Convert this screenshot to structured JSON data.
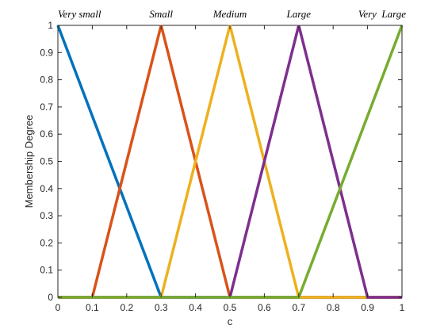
{
  "chart_data": {
    "type": "line",
    "title": "",
    "xlabel": "c",
    "ylabel": "Membership Degree",
    "xlim": [
      0,
      1
    ],
    "ylim": [
      0,
      1
    ],
    "x_ticks": [
      "0",
      "0.1",
      "0.2",
      "0.3",
      "0.4",
      "0.5",
      "0.6",
      "0.7",
      "0.8",
      "0.9",
      "1"
    ],
    "y_ticks": [
      "0",
      "0.1",
      "0.2",
      "0.3",
      "0.4",
      "0.5",
      "0.6",
      "0.7",
      "0.8",
      "0.9",
      "1"
    ],
    "grid": false,
    "top_labels": [
      {
        "text": "Very small",
        "x": 0.0
      },
      {
        "text": "Small",
        "x": 0.3
      },
      {
        "text": "Medium",
        "x": 0.5
      },
      {
        "text": "Large",
        "x": 0.7
      },
      {
        "text": "Very  Large",
        "x": 1.0
      }
    ],
    "series": [
      {
        "color": "#0072BD",
        "x": [
          0,
          0.3,
          1
        ],
        "y": [
          1,
          0,
          0
        ]
      },
      {
        "color": "#D95319",
        "x": [
          0,
          0.1,
          0.3,
          0.5,
          1
        ],
        "y": [
          0,
          0,
          1,
          0,
          0
        ]
      },
      {
        "color": "#EDB120",
        "x": [
          0,
          0.3,
          0.5,
          0.7,
          1
        ],
        "y": [
          0,
          0,
          1,
          0,
          0
        ]
      },
      {
        "color": "#7E2F8E",
        "x": [
          0,
          0.5,
          0.7,
          0.9,
          1
        ],
        "y": [
          0,
          0,
          1,
          0,
          0
        ]
      },
      {
        "color": "#77AC30",
        "x": [
          0,
          0.7,
          1
        ],
        "y": [
          0,
          0,
          1
        ]
      }
    ]
  }
}
